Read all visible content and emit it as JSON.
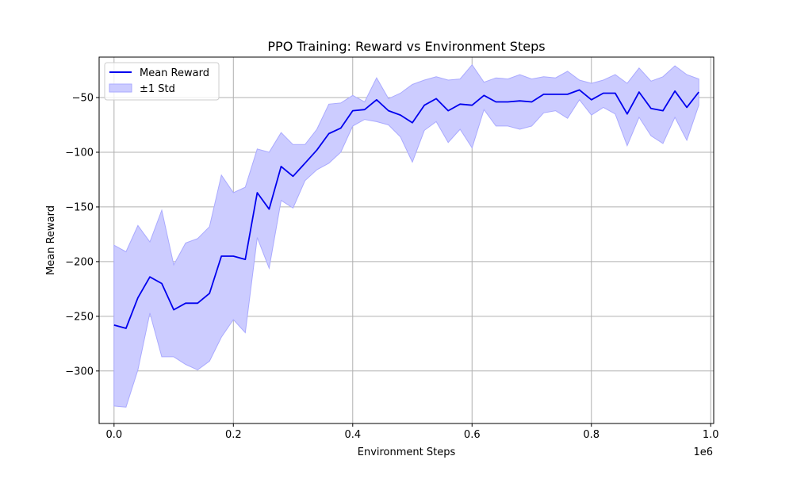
{
  "chart_data": {
    "type": "line",
    "title": "PPO Training: Reward vs Environment Steps",
    "xlabel": "Environment Steps",
    "ylabel": "Mean Reward",
    "x_offset_label": "1e6",
    "xlim": [
      -25000,
      1005000
    ],
    "ylim": [
      -348,
      -13
    ],
    "x_tick_values": [
      0,
      200000,
      400000,
      600000,
      800000,
      1000000
    ],
    "x_tick_labels": [
      "0.0",
      "0.2",
      "0.4",
      "0.6",
      "0.8",
      "1.0"
    ],
    "y_tick_values": [
      -300,
      -250,
      -200,
      -150,
      -100,
      -50
    ],
    "y_tick_labels": [
      "−300",
      "−250",
      "−200",
      "−150",
      "−100",
      "−50"
    ],
    "grid": true,
    "legend_position": "top-left",
    "colors": {
      "line": "#0000ee",
      "band_fill": "#ccccff",
      "band_edge": "#aaaaff",
      "grid": "#b0b0b0"
    },
    "x": [
      0,
      20000,
      40000,
      60000,
      80000,
      100000,
      120000,
      140000,
      160000,
      180000,
      200000,
      220000,
      240000,
      260000,
      280000,
      300000,
      320000,
      340000,
      360000,
      380000,
      400000,
      420000,
      440000,
      460000,
      480000,
      500000,
      520000,
      540000,
      560000,
      580000,
      600000,
      620000,
      640000,
      660000,
      680000,
      700000,
      720000,
      740000,
      760000,
      780000,
      800000,
      820000,
      840000,
      860000,
      880000,
      900000,
      920000,
      940000,
      960000,
      980000
    ],
    "series": [
      {
        "name": "Mean Reward",
        "kind": "line",
        "values": [
          -258,
          -261,
          -233,
          -214,
          -220,
          -244,
          -238,
          -238,
          -229,
          -195,
          -195,
          -198,
          -137,
          -152,
          -113,
          -122,
          -110,
          -98,
          -83,
          -78,
          -62,
          -61,
          -52,
          -62,
          -66,
          -73,
          -57,
          -51,
          -62,
          -56,
          -57,
          -48,
          -54,
          -54,
          -53,
          -54,
          -47,
          -47,
          -47,
          -43,
          -52,
          -46,
          -46,
          -65,
          -45,
          -60,
          -62,
          -44,
          -59,
          -45
        ]
      },
      {
        "name": "±1 Std",
        "kind": "band",
        "upper": [
          -185,
          -191,
          -167,
          -182,
          -153,
          -203,
          -183,
          -179,
          -168,
          -121,
          -137,
          -132,
          -97,
          -100,
          -82,
          -93,
          -93,
          -79,
          -56,
          -55,
          -48,
          -54,
          -32,
          -51,
          -46,
          -38,
          -34,
          -31,
          -34,
          -33,
          -20,
          -36,
          -32,
          -33,
          -29,
          -33,
          -31,
          -32,
          -26,
          -34,
          -37,
          -34,
          -29,
          -37,
          -23,
          -35,
          -31,
          -21,
          -29,
          -33
        ],
        "lower": [
          -332,
          -333,
          -299,
          -247,
          -287,
          -287,
          -294,
          -299,
          -291,
          -269,
          -253,
          -265,
          -178,
          -206,
          -144,
          -151,
          -126,
          -116,
          -110,
          -100,
          -76,
          -70,
          -72,
          -75,
          -86,
          -109,
          -80,
          -72,
          -91,
          -79,
          -96,
          -61,
          -76,
          -76,
          -79,
          -76,
          -64,
          -62,
          -69,
          -52,
          -66,
          -59,
          -65,
          -94,
          -68,
          -85,
          -92,
          -68,
          -89,
          -57
        ]
      }
    ]
  }
}
